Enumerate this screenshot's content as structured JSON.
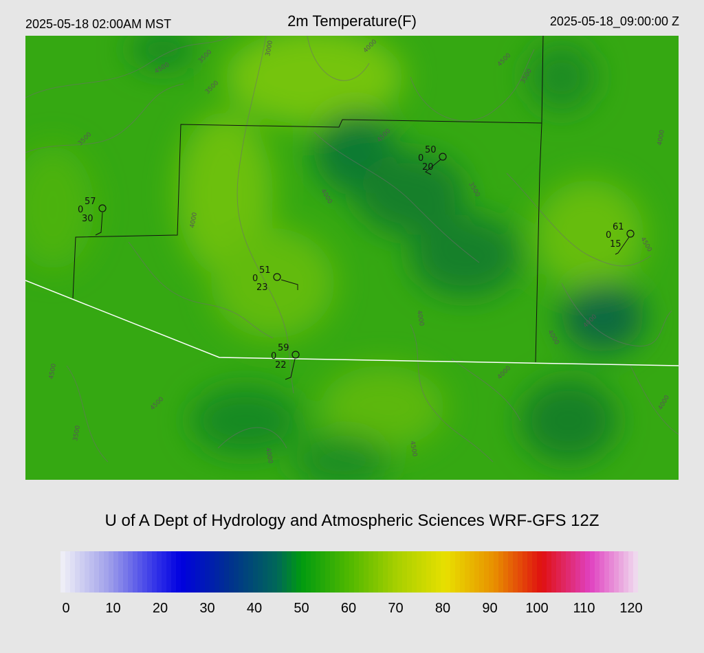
{
  "header": {
    "local_time": "2025-05-18 02:00AM MST",
    "title": "2m Temperature(F)",
    "valid_time": "2025-05-18_09:00:00 Z"
  },
  "credit": "U of A Dept of Hydrology and Atmospheric Sciences WRF-GFS 12Z",
  "colorbar": {
    "ticks": [
      "0",
      "10",
      "20",
      "30",
      "40",
      "50",
      "60",
      "70",
      "80",
      "90",
      "100",
      "110",
      "120"
    ],
    "range": [
      0,
      120
    ],
    "stops": [
      {
        "v": 0,
        "c": "#f2f2f7"
      },
      {
        "v": 10,
        "c": "#a0a0ea"
      },
      {
        "v": 20,
        "c": "#3030e8"
      },
      {
        "v": 25,
        "c": "#0000e0"
      },
      {
        "v": 35,
        "c": "#003090"
      },
      {
        "v": 45,
        "c": "#006858"
      },
      {
        "v": 50,
        "c": "#009a10"
      },
      {
        "v": 60,
        "c": "#50b800"
      },
      {
        "v": 70,
        "c": "#a8d000"
      },
      {
        "v": 80,
        "c": "#e8e000"
      },
      {
        "v": 90,
        "c": "#e89000"
      },
      {
        "v": 100,
        "c": "#e01010"
      },
      {
        "v": 110,
        "c": "#e040c0"
      },
      {
        "v": 120,
        "c": "#f0e0f0"
      }
    ]
  },
  "map": {
    "base_color": "#35a812",
    "state_line_color": "#ffffff",
    "county_line_color": "#111111",
    "contour_labels": [
      "4500",
      "3500",
      "3000",
      "3500",
      "4000",
      "4500",
      "3500",
      "4500",
      "4000",
      "3500",
      "4000",
      "3500",
      "4500",
      "4000",
      "4000",
      "4000",
      "4500",
      "3500",
      "4500",
      "4000",
      "4000",
      "4000",
      "4500",
      "4000"
    ]
  },
  "stations": [
    {
      "id": "stn-1",
      "temp": "57",
      "wind": "0",
      "dew": "30"
    },
    {
      "id": "stn-2",
      "temp": "50",
      "wind": "0",
      "dew": "20"
    },
    {
      "id": "stn-3",
      "temp": "51",
      "wind": "0",
      "dew": "23"
    },
    {
      "id": "stn-4",
      "temp": "59",
      "wind": "0",
      "dew": "22"
    },
    {
      "id": "stn-5",
      "temp": "61",
      "wind": "0",
      "dew": "15"
    }
  ]
}
